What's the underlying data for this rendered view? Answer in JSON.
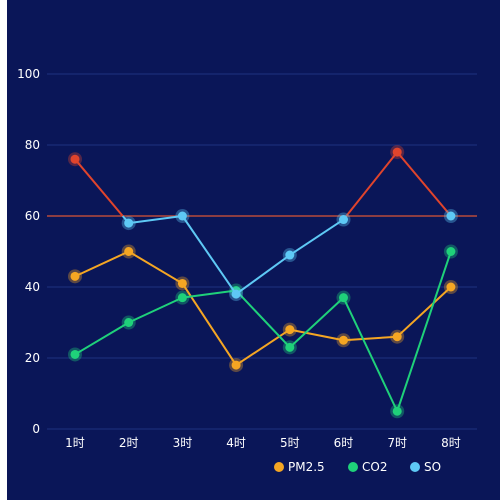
{
  "chart_data": {
    "type": "line",
    "categories": [
      "1时",
      "2时",
      "3时",
      "4时",
      "5时",
      "6时",
      "7时",
      "8时"
    ],
    "ylim": [
      0,
      100
    ],
    "yticks": [
      0,
      20,
      40,
      60,
      80,
      100
    ],
    "grid": true,
    "legend_position": "bottom-right",
    "threshold": {
      "value": 60,
      "color": "#b84a3a"
    },
    "series": [
      {
        "name": "PM2.5",
        "color": "#f5a623",
        "values": [
          43,
          50,
          41,
          18,
          28,
          25,
          26,
          40
        ]
      },
      {
        "name": "CO2",
        "color": "#1fd17a",
        "values": [
          21,
          30,
          37,
          39,
          23,
          37,
          5,
          50
        ]
      },
      {
        "name": "SO",
        "color": "#5ec9f5",
        "above_threshold_color": "#e0442c",
        "values": [
          76,
          58,
          60,
          38,
          49,
          59,
          78,
          60
        ]
      }
    ]
  }
}
